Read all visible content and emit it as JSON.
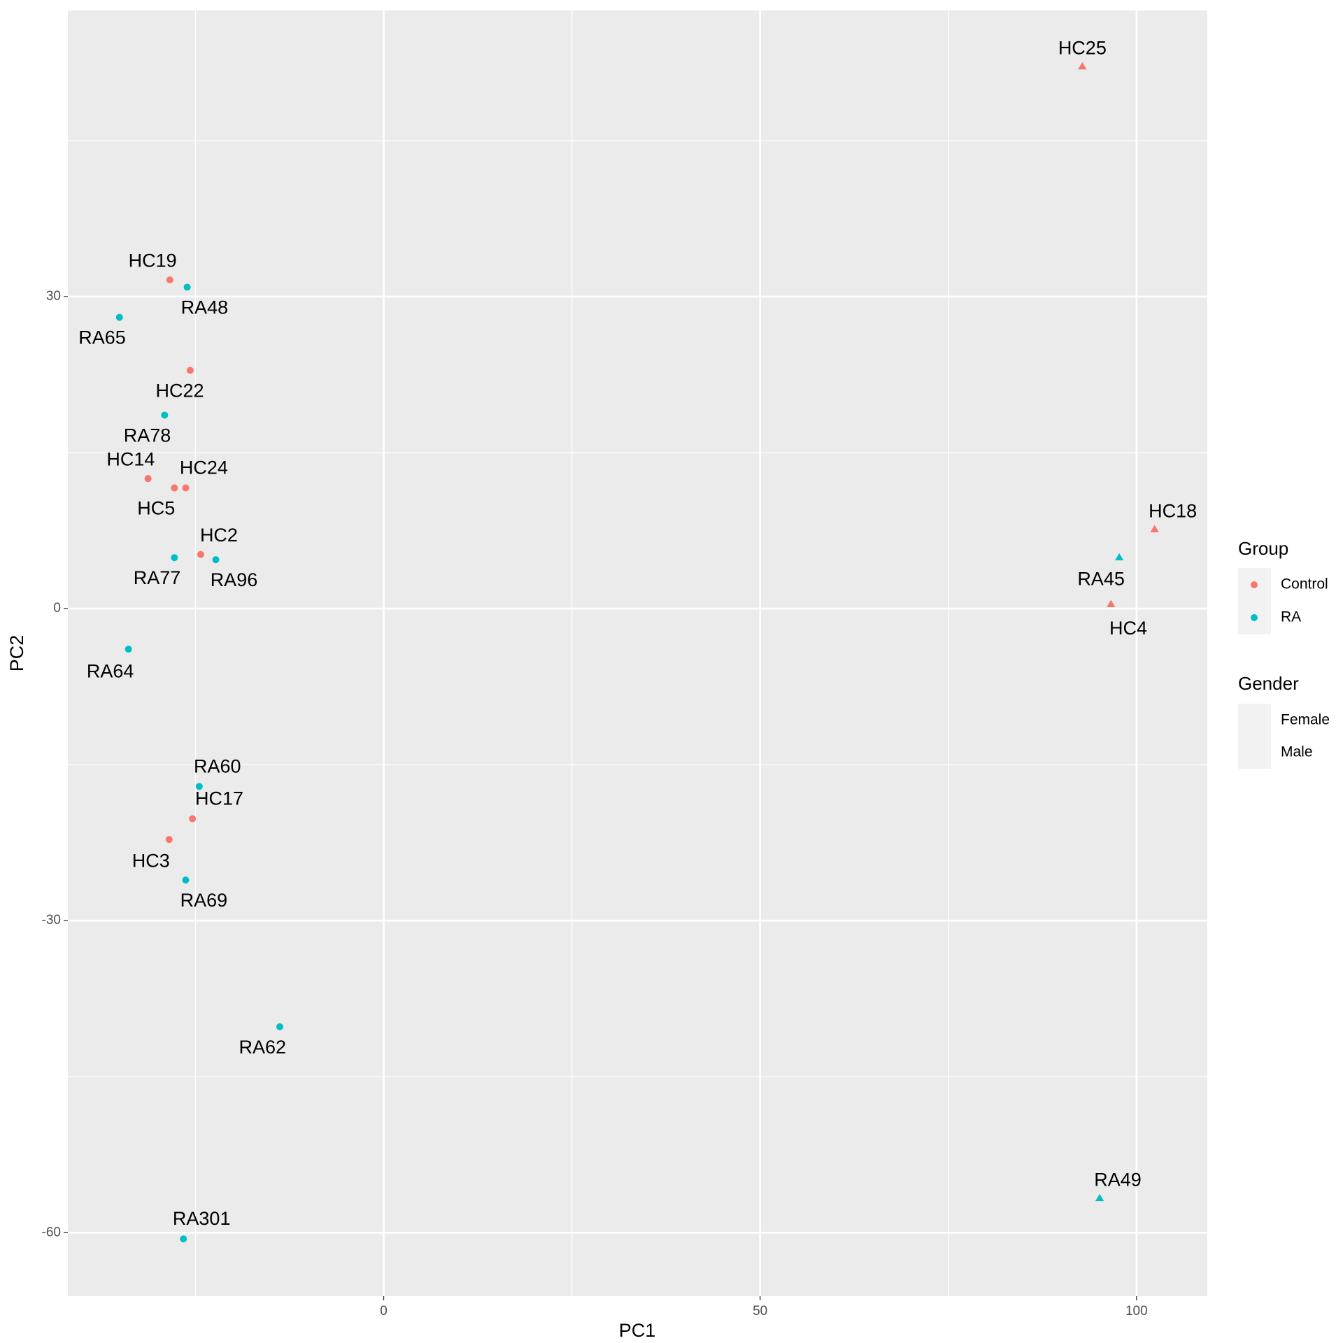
{
  "chart_data": {
    "type": "scatter",
    "x_label": "PC1",
    "y_label": "PC2",
    "xlim": [
      -41.95,
      109.4
    ],
    "ylim": [
      -66.1,
      57.5
    ],
    "xticks": [
      0,
      50,
      100
    ],
    "yticks": [
      -60,
      -30,
      0,
      30
    ],
    "xminor": [
      -25,
      25,
      75
    ],
    "yminor": [
      -45,
      -15,
      15,
      45
    ],
    "grid": true,
    "color_legend_title": "Group",
    "shape_legend_title": "Gender",
    "shapes": [
      "Female",
      "Male"
    ],
    "series": [
      {
        "name": "Control",
        "color": "#F8766D",
        "labels": [
          "HC25",
          "HC19",
          "HC22",
          "HC14",
          "HC24",
          "HC5",
          "HC2",
          "HC17",
          "HC3",
          "HC18",
          "HC4"
        ],
        "x": [
          92.8,
          -28.4,
          -25.7,
          -31.3,
          -26.3,
          -27.8,
          -24.3,
          -25.4,
          -28.5,
          102.4,
          96.6
        ],
        "values": [
          52.1,
          31.6,
          22.9,
          12.5,
          11.6,
          11.6,
          5.2,
          -20.2,
          -22.2,
          7.6,
          0.4
        ],
        "gender": [
          "Male",
          "Female",
          "Female",
          "Female",
          "Female",
          "Female",
          "Female",
          "Female",
          "Female",
          "Male",
          "Male"
        ]
      },
      {
        "name": "RA",
        "color": "#00BFC4",
        "labels": [
          "RA48",
          "RA65",
          "RA78",
          "RA77",
          "RA96",
          "RA64",
          "RA60",
          "RA69",
          "RA62",
          "RA301",
          "RA45",
          "RA49"
        ],
        "x": [
          -26.1,
          -35.1,
          -29.1,
          -27.8,
          -22.3,
          -33.9,
          -24.5,
          -26.3,
          -13.8,
          -26.6,
          97.7,
          95.1
        ],
        "values": [
          30.9,
          28.0,
          18.6,
          4.9,
          4.7,
          -3.9,
          -17.1,
          -26.1,
          -40.2,
          -60.6,
          4.9,
          -56.7
        ],
        "gender": [
          "Female",
          "Female",
          "Female",
          "Female",
          "Female",
          "Female",
          "Female",
          "Female",
          "Female",
          "Female",
          "Male",
          "Male"
        ]
      }
    ]
  }
}
